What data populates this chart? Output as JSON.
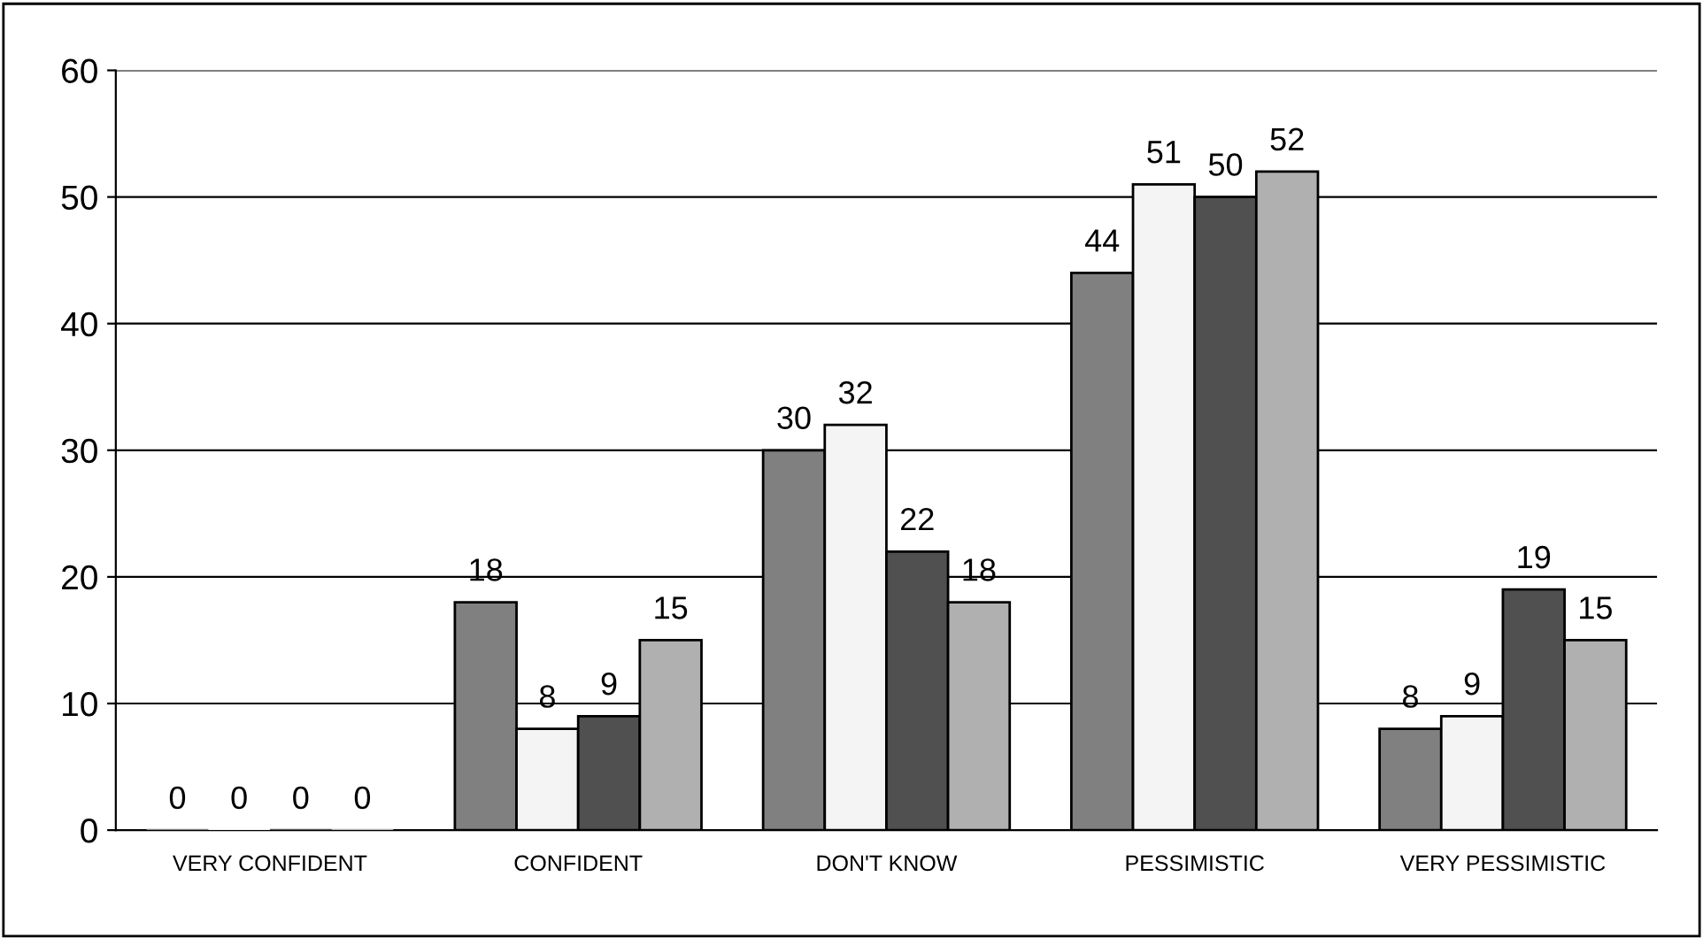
{
  "chart_data": {
    "type": "bar",
    "categories": [
      "VERY CONFIDENT",
      "CONFIDENT",
      "DON'T KNOW",
      "PESSIMISTIC",
      "VERY PESSIMISTIC"
    ],
    "series": [
      {
        "color": "#808080",
        "values": [
          0,
          18,
          30,
          44,
          8
        ]
      },
      {
        "color": "#f4f4f4",
        "values": [
          0,
          8,
          32,
          51,
          9
        ]
      },
      {
        "color": "#505050",
        "values": [
          0,
          9,
          22,
          50,
          19
        ]
      },
      {
        "color": "#b0b0b0",
        "values": [
          0,
          15,
          18,
          52,
          15
        ]
      }
    ],
    "ylim": [
      0,
      60
    ],
    "yticks": [
      0,
      10,
      20,
      30,
      40,
      50,
      60
    ],
    "grid": "y",
    "legend": false,
    "data_labels": true
  }
}
